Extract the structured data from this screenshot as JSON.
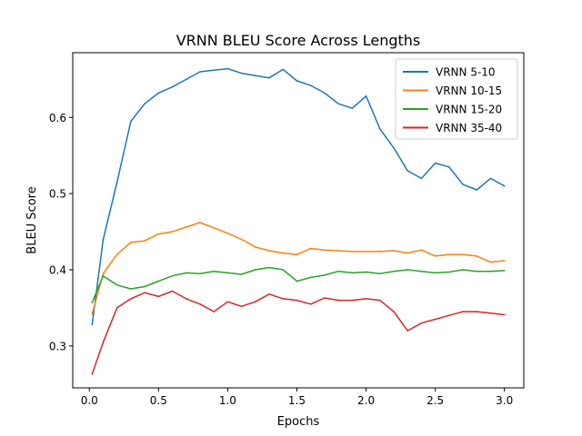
{
  "chart_data": {
    "type": "line",
    "title": "VRNN BLEU Score Across Lengths",
    "xlabel": "Epochs",
    "ylabel": "BLEU Score",
    "xlim": [
      -0.12,
      3.14
    ],
    "ylim": [
      0.245,
      0.685
    ],
    "x_ticks": [
      0.0,
      0.5,
      1.0,
      1.5,
      2.0,
      2.5,
      3.0
    ],
    "x_tick_labels": [
      "0.0",
      "0.5",
      "1.0",
      "1.5",
      "2.0",
      "2.5",
      "3.0"
    ],
    "y_ticks": [
      0.3,
      0.4,
      0.5,
      0.6
    ],
    "y_tick_labels": [
      "0.3",
      "0.4",
      "0.5",
      "0.6"
    ],
    "grid": false,
    "legend_position": "top-right",
    "series": [
      {
        "name": "VRNN 5-10",
        "color": "#1f77b4",
        "x": [
          0.02,
          0.1,
          0.2,
          0.3,
          0.4,
          0.5,
          0.6,
          0.7,
          0.8,
          0.9,
          1.0,
          1.1,
          1.2,
          1.3,
          1.4,
          1.5,
          1.6,
          1.7,
          1.8,
          1.9,
          2.0,
          2.1,
          2.2,
          2.3,
          2.4,
          2.5,
          2.6,
          2.7,
          2.8,
          2.9,
          3.0
        ],
        "values": [
          0.328,
          0.44,
          0.515,
          0.595,
          0.618,
          0.632,
          0.64,
          0.65,
          0.66,
          0.662,
          0.664,
          0.658,
          0.655,
          0.652,
          0.663,
          0.648,
          0.642,
          0.632,
          0.618,
          0.612,
          0.628,
          0.585,
          0.56,
          0.53,
          0.52,
          0.54,
          0.535,
          0.512,
          0.505,
          0.52,
          0.51
        ]
      },
      {
        "name": "VRNN 10-15",
        "color": "#ff7f0e",
        "x": [
          0.02,
          0.1,
          0.2,
          0.3,
          0.4,
          0.5,
          0.6,
          0.7,
          0.8,
          0.9,
          1.0,
          1.1,
          1.2,
          1.3,
          1.4,
          1.5,
          1.6,
          1.7,
          1.8,
          1.9,
          2.0,
          2.1,
          2.2,
          2.3,
          2.4,
          2.5,
          2.6,
          2.7,
          2.8,
          2.9,
          3.0
        ],
        "values": [
          0.342,
          0.395,
          0.42,
          0.436,
          0.438,
          0.447,
          0.45,
          0.456,
          0.462,
          0.455,
          0.448,
          0.44,
          0.43,
          0.425,
          0.422,
          0.42,
          0.428,
          0.426,
          0.425,
          0.424,
          0.424,
          0.424,
          0.425,
          0.422,
          0.426,
          0.418,
          0.42,
          0.42,
          0.418,
          0.41,
          0.412
        ]
      },
      {
        "name": "VRNN 15-20",
        "color": "#2ca02c",
        "x": [
          0.02,
          0.1,
          0.2,
          0.3,
          0.4,
          0.5,
          0.6,
          0.7,
          0.8,
          0.9,
          1.0,
          1.1,
          1.2,
          1.3,
          1.4,
          1.5,
          1.6,
          1.7,
          1.8,
          1.9,
          2.0,
          2.1,
          2.2,
          2.3,
          2.4,
          2.5,
          2.6,
          2.7,
          2.8,
          2.9,
          3.0
        ],
        "values": [
          0.357,
          0.392,
          0.38,
          0.375,
          0.378,
          0.385,
          0.392,
          0.396,
          0.395,
          0.398,
          0.396,
          0.394,
          0.4,
          0.403,
          0.4,
          0.385,
          0.39,
          0.393,
          0.398,
          0.396,
          0.397,
          0.395,
          0.398,
          0.4,
          0.398,
          0.396,
          0.397,
          0.4,
          0.398,
          0.398,
          0.399
        ]
      },
      {
        "name": "VRNN 35-40",
        "color": "#d62728",
        "x": [
          0.02,
          0.1,
          0.2,
          0.3,
          0.4,
          0.5,
          0.6,
          0.7,
          0.8,
          0.9,
          1.0,
          1.1,
          1.2,
          1.3,
          1.4,
          1.5,
          1.6,
          1.7,
          1.8,
          1.9,
          2.0,
          2.1,
          2.2,
          2.3,
          2.4,
          2.5,
          2.6,
          2.7,
          2.8,
          2.9,
          3.0
        ],
        "values": [
          0.263,
          0.305,
          0.35,
          0.362,
          0.37,
          0.365,
          0.372,
          0.362,
          0.355,
          0.345,
          0.358,
          0.352,
          0.358,
          0.368,
          0.362,
          0.36,
          0.355,
          0.363,
          0.36,
          0.36,
          0.362,
          0.36,
          0.345,
          0.32,
          0.33,
          0.335,
          0.34,
          0.345,
          0.345,
          0.343,
          0.341
        ]
      }
    ]
  }
}
